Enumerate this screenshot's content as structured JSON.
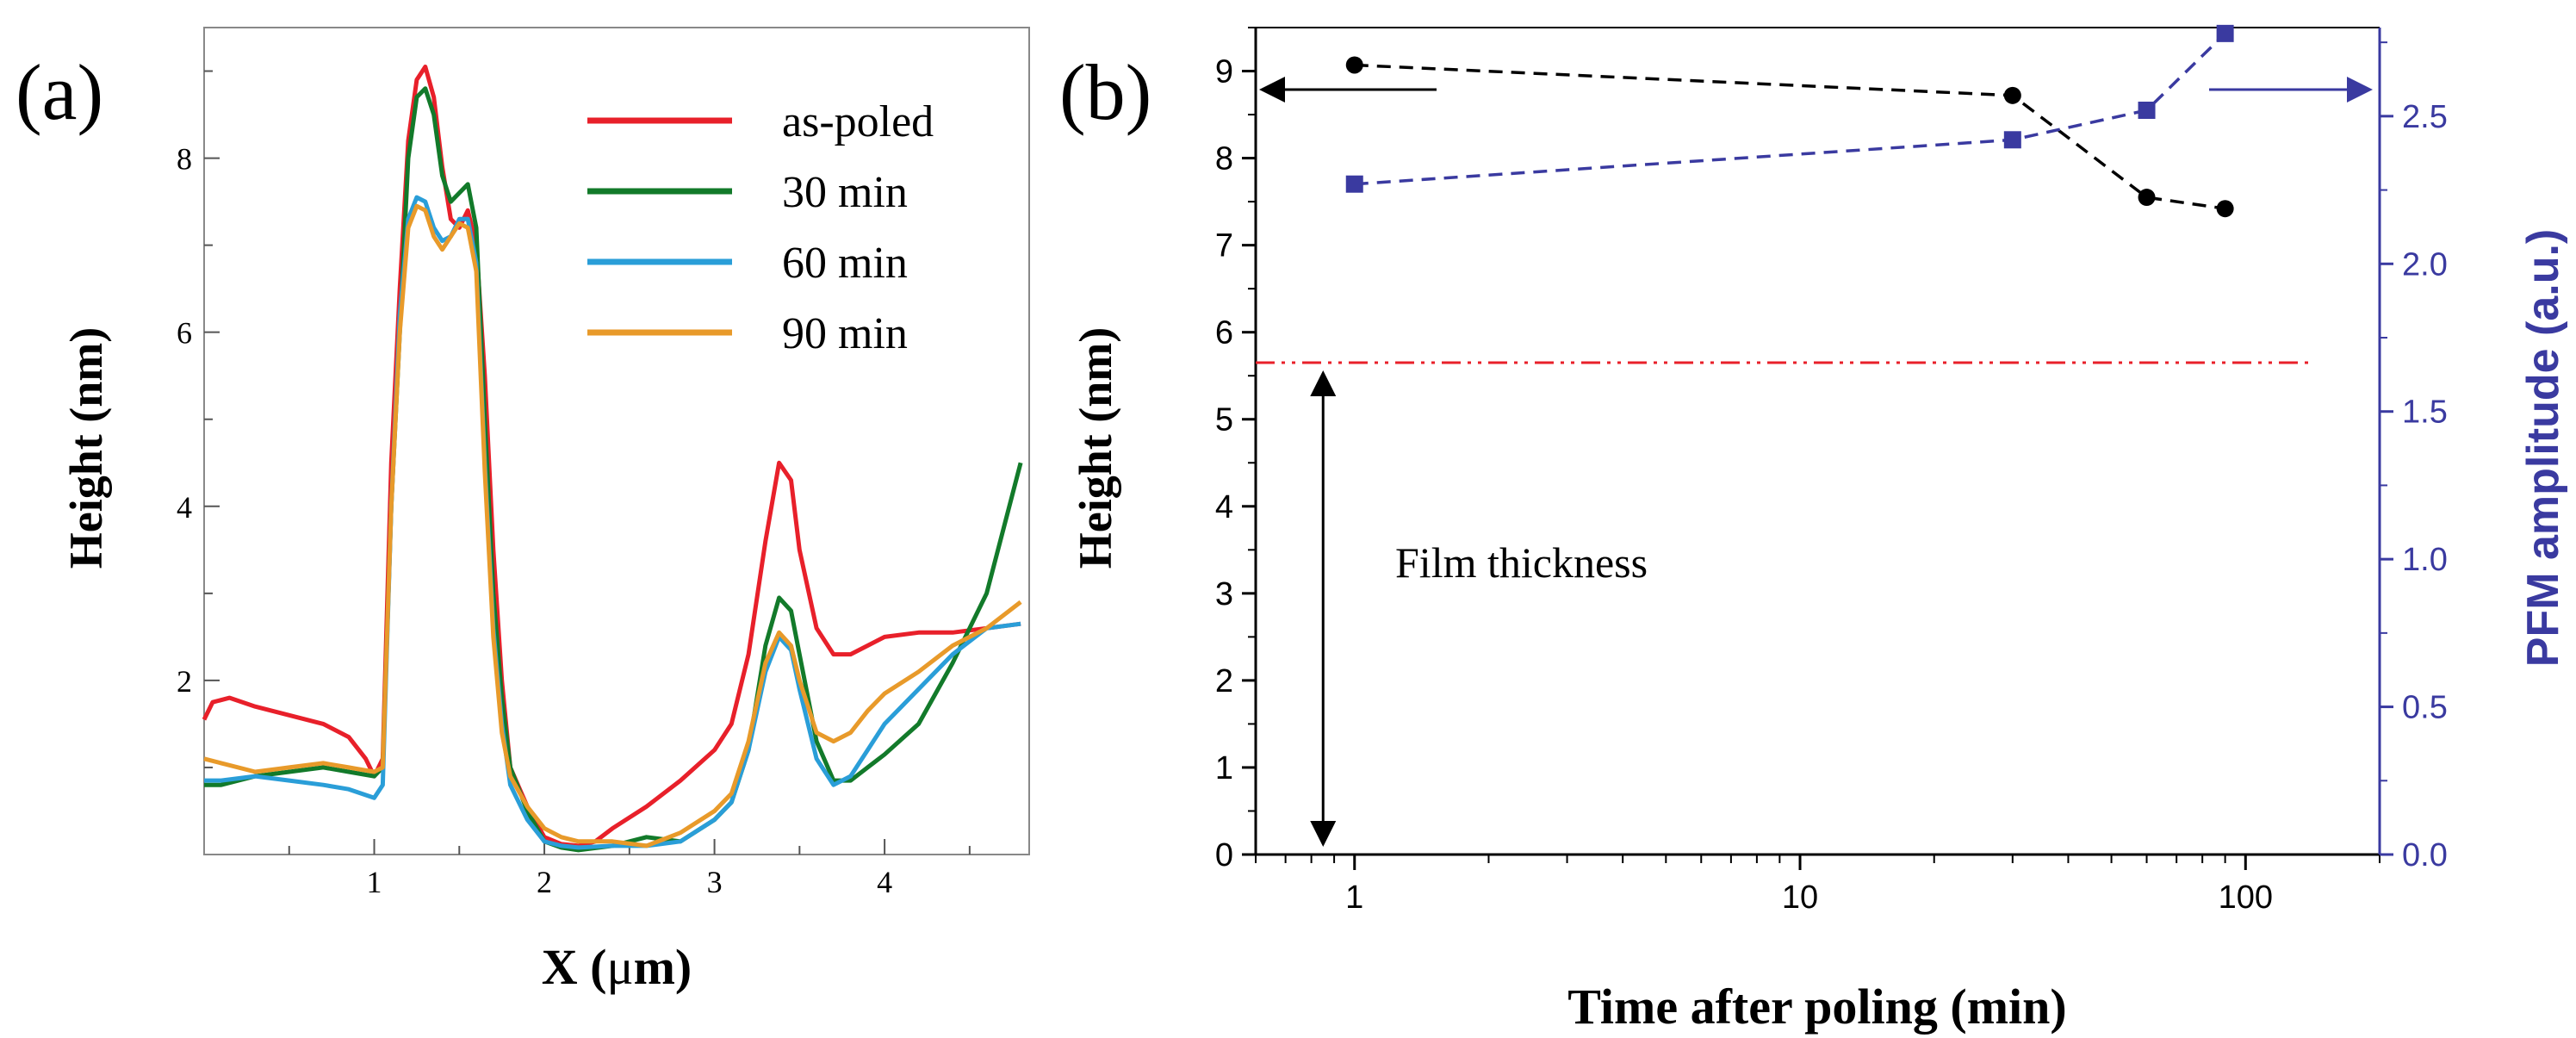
{
  "chart_data": [
    {
      "panel_label": "(a)",
      "type": "line",
      "xlabel_prefix": "X (",
      "xlabel_mu": "μ",
      "xlabel_suffix": "m)",
      "ylabel": "Height (nm)",
      "xlim": [
        0,
        4.85
      ],
      "ylim": [
        0,
        9.5
      ],
      "xticks": [
        1,
        2,
        3,
        4
      ],
      "yticks": [
        2,
        4,
        6,
        8
      ],
      "legend_position": "top-right",
      "series": [
        {
          "name": "as-poled",
          "color": "#e8202a",
          "points": [
            [
              0,
              1.55
            ],
            [
              0.05,
              1.75
            ],
            [
              0.15,
              1.8
            ],
            [
              0.3,
              1.7
            ],
            [
              0.5,
              1.6
            ],
            [
              0.7,
              1.5
            ],
            [
              0.85,
              1.35
            ],
            [
              0.95,
              1.1
            ],
            [
              1.0,
              0.9
            ],
            [
              1.05,
              1.1
            ],
            [
              1.1,
              4.5
            ],
            [
              1.15,
              6.5
            ],
            [
              1.2,
              8.2
            ],
            [
              1.25,
              8.9
            ],
            [
              1.3,
              9.05
            ],
            [
              1.35,
              8.7
            ],
            [
              1.4,
              7.9
            ],
            [
              1.45,
              7.3
            ],
            [
              1.5,
              7.2
            ],
            [
              1.55,
              7.4
            ],
            [
              1.6,
              7.0
            ],
            [
              1.65,
              5.5
            ],
            [
              1.7,
              3.5
            ],
            [
              1.75,
              2.0
            ],
            [
              1.8,
              1.0
            ],
            [
              1.9,
              0.55
            ],
            [
              2.0,
              0.2
            ],
            [
              2.1,
              0.12
            ],
            [
              2.2,
              0.1
            ],
            [
              2.3,
              0.15
            ],
            [
              2.4,
              0.3
            ],
            [
              2.6,
              0.55
            ],
            [
              2.8,
              0.85
            ],
            [
              3.0,
              1.2
            ],
            [
              3.1,
              1.5
            ],
            [
              3.2,
              2.3
            ],
            [
              3.3,
              3.6
            ],
            [
              3.38,
              4.5
            ],
            [
              3.45,
              4.3
            ],
            [
              3.5,
              3.5
            ],
            [
              3.6,
              2.6
            ],
            [
              3.7,
              2.3
            ],
            [
              3.8,
              2.3
            ],
            [
              3.9,
              2.4
            ],
            [
              4.0,
              2.5
            ],
            [
              4.2,
              2.55
            ],
            [
              4.4,
              2.55
            ],
            [
              4.6,
              2.6
            ],
            [
              4.8,
              2.65
            ]
          ]
        },
        {
          "name": "30 min",
          "color": "#127a2a",
          "points": [
            [
              0,
              0.8
            ],
            [
              0.1,
              0.8
            ],
            [
              0.3,
              0.9
            ],
            [
              0.5,
              0.95
            ],
            [
              0.7,
              1.0
            ],
            [
              0.85,
              0.95
            ],
            [
              1.0,
              0.9
            ],
            [
              1.05,
              1.0
            ],
            [
              1.1,
              4.0
            ],
            [
              1.15,
              6.0
            ],
            [
              1.2,
              8.0
            ],
            [
              1.25,
              8.7
            ],
            [
              1.3,
              8.8
            ],
            [
              1.35,
              8.5
            ],
            [
              1.4,
              7.8
            ],
            [
              1.45,
              7.5
            ],
            [
              1.5,
              7.6
            ],
            [
              1.55,
              7.7
            ],
            [
              1.6,
              7.2
            ],
            [
              1.65,
              5.0
            ],
            [
              1.7,
              3.0
            ],
            [
              1.75,
              1.8
            ],
            [
              1.8,
              1.0
            ],
            [
              1.9,
              0.5
            ],
            [
              2.0,
              0.15
            ],
            [
              2.1,
              0.08
            ],
            [
              2.2,
              0.05
            ],
            [
              2.4,
              0.1
            ],
            [
              2.6,
              0.2
            ],
            [
              2.8,
              0.15
            ],
            [
              3.0,
              0.4
            ],
            [
              3.1,
              0.6
            ],
            [
              3.2,
              1.2
            ],
            [
              3.3,
              2.4
            ],
            [
              3.38,
              2.95
            ],
            [
              3.45,
              2.8
            ],
            [
              3.5,
              2.3
            ],
            [
              3.6,
              1.3
            ],
            [
              3.7,
              0.85
            ],
            [
              3.8,
              0.85
            ],
            [
              3.9,
              1.0
            ],
            [
              4.0,
              1.15
            ],
            [
              4.2,
              1.5
            ],
            [
              4.4,
              2.2
            ],
            [
              4.6,
              3.0
            ],
            [
              4.8,
              4.5
            ]
          ]
        },
        {
          "name": "60 min",
          "color": "#2a9ed8",
          "points": [
            [
              0,
              0.85
            ],
            [
              0.1,
              0.85
            ],
            [
              0.3,
              0.9
            ],
            [
              0.5,
              0.85
            ],
            [
              0.7,
              0.8
            ],
            [
              0.85,
              0.75
            ],
            [
              1.0,
              0.65
            ],
            [
              1.05,
              0.8
            ],
            [
              1.1,
              4.0
            ],
            [
              1.15,
              6.2
            ],
            [
              1.2,
              7.3
            ],
            [
              1.25,
              7.55
            ],
            [
              1.3,
              7.5
            ],
            [
              1.35,
              7.2
            ],
            [
              1.4,
              7.05
            ],
            [
              1.45,
              7.1
            ],
            [
              1.5,
              7.3
            ],
            [
              1.55,
              7.3
            ],
            [
              1.6,
              6.8
            ],
            [
              1.65,
              4.5
            ],
            [
              1.7,
              2.6
            ],
            [
              1.75,
              1.5
            ],
            [
              1.8,
              0.8
            ],
            [
              1.9,
              0.4
            ],
            [
              2.0,
              0.15
            ],
            [
              2.1,
              0.1
            ],
            [
              2.2,
              0.08
            ],
            [
              2.4,
              0.1
            ],
            [
              2.6,
              0.1
            ],
            [
              2.8,
              0.15
            ],
            [
              3.0,
              0.4
            ],
            [
              3.1,
              0.6
            ],
            [
              3.2,
              1.2
            ],
            [
              3.3,
              2.1
            ],
            [
              3.38,
              2.5
            ],
            [
              3.45,
              2.35
            ],
            [
              3.5,
              1.9
            ],
            [
              3.6,
              1.1
            ],
            [
              3.7,
              0.8
            ],
            [
              3.8,
              0.9
            ],
            [
              3.9,
              1.2
            ],
            [
              4.0,
              1.5
            ],
            [
              4.2,
              1.9
            ],
            [
              4.4,
              2.3
            ],
            [
              4.6,
              2.6
            ],
            [
              4.8,
              2.65
            ]
          ]
        },
        {
          "name": "90 min",
          "color": "#e89a2a",
          "points": [
            [
              0,
              1.1
            ],
            [
              0.1,
              1.05
            ],
            [
              0.3,
              0.95
            ],
            [
              0.5,
              1.0
            ],
            [
              0.7,
              1.05
            ],
            [
              0.85,
              1.0
            ],
            [
              1.0,
              0.95
            ],
            [
              1.05,
              1.0
            ],
            [
              1.1,
              4.0
            ],
            [
              1.15,
              6.0
            ],
            [
              1.2,
              7.2
            ],
            [
              1.25,
              7.45
            ],
            [
              1.3,
              7.4
            ],
            [
              1.35,
              7.1
            ],
            [
              1.4,
              6.95
            ],
            [
              1.45,
              7.1
            ],
            [
              1.5,
              7.25
            ],
            [
              1.55,
              7.2
            ],
            [
              1.6,
              6.7
            ],
            [
              1.65,
              4.4
            ],
            [
              1.7,
              2.5
            ],
            [
              1.75,
              1.4
            ],
            [
              1.8,
              0.9
            ],
            [
              1.9,
              0.55
            ],
            [
              2.0,
              0.3
            ],
            [
              2.1,
              0.2
            ],
            [
              2.2,
              0.15
            ],
            [
              2.4,
              0.15
            ],
            [
              2.6,
              0.1
            ],
            [
              2.8,
              0.25
            ],
            [
              3.0,
              0.5
            ],
            [
              3.1,
              0.7
            ],
            [
              3.2,
              1.3
            ],
            [
              3.3,
              2.2
            ],
            [
              3.38,
              2.55
            ],
            [
              3.45,
              2.4
            ],
            [
              3.5,
              2.0
            ],
            [
              3.6,
              1.4
            ],
            [
              3.7,
              1.3
            ],
            [
              3.8,
              1.4
            ],
            [
              3.9,
              1.65
            ],
            [
              4.0,
              1.85
            ],
            [
              4.2,
              2.1
            ],
            [
              4.4,
              2.4
            ],
            [
              4.6,
              2.6
            ],
            [
              4.8,
              2.9
            ]
          ]
        }
      ]
    },
    {
      "panel_label": "(b)",
      "type": "scatter",
      "xlabel": "Time after poling (min)",
      "xscale": "log",
      "xlim": [
        0.6,
        200
      ],
      "xtick_labels": [
        "1",
        "10",
        "100"
      ],
      "xticks": [
        1,
        10,
        100
      ],
      "ylabel_left": "Height (nm)",
      "ylim_left": [
        0,
        9.5
      ],
      "yticks_left": [
        "0",
        "1",
        "2",
        "3",
        "4",
        "5",
        "6",
        "7",
        "8",
        "9"
      ],
      "ylabel_right": "PFM amplitude (a.u.)",
      "ylim_right": [
        0,
        2.8
      ],
      "yticks_right": [
        "0.0",
        "0.5",
        "1.0",
        "1.5",
        "2.0",
        "2.5"
      ],
      "right_axis_color": "#3a3aa0",
      "series": [
        {
          "name": "Height",
          "axis": "left",
          "color": "#000000",
          "marker": "circle",
          "x": [
            1,
            30,
            60,
            90
          ],
          "y": [
            9.07,
            8.72,
            7.55,
            7.42
          ]
        },
        {
          "name": "PFM amplitude",
          "axis": "right",
          "color": "#3a3aa0",
          "marker": "square",
          "x": [
            1,
            30,
            60,
            90
          ],
          "y": [
            2.27,
            2.42,
            2.52,
            2.78
          ]
        }
      ],
      "reference_line": {
        "axis": "left",
        "y": 5.65,
        "color": "#e8202a",
        "style": "dash-dot"
      },
      "annotation": "Film thickness",
      "annotation_value": 5.65
    }
  ]
}
